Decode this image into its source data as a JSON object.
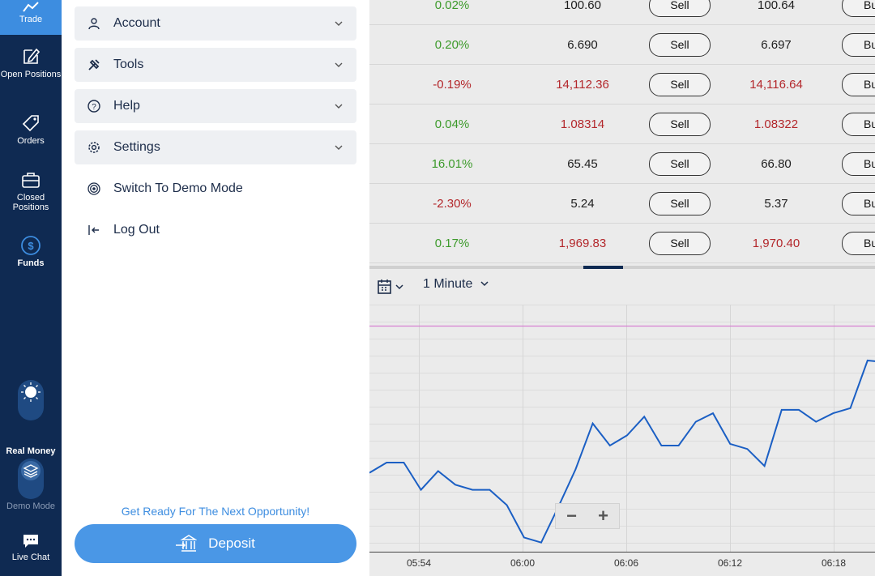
{
  "rail": {
    "items": [
      {
        "label": "Trade",
        "icon": "chart-icon"
      },
      {
        "label": "Open Positions",
        "icon": "edit-icon"
      },
      {
        "label": "Orders",
        "icon": "tag-icon"
      },
      {
        "label": "Closed Positions",
        "icon": "briefcase-icon"
      },
      {
        "label": "Funds",
        "icon": "dollar-icon"
      }
    ],
    "mode_real": "Real Money",
    "mode_demo": "Demo Mode",
    "live_chat": "Live Chat"
  },
  "menu": {
    "items": [
      {
        "label": "Account",
        "icon": "user-icon",
        "expandable": true
      },
      {
        "label": "Tools",
        "icon": "tools-icon",
        "expandable": true
      },
      {
        "label": "Help",
        "icon": "help-icon",
        "expandable": true
      },
      {
        "label": "Settings",
        "icon": "gear-icon",
        "expandable": true
      },
      {
        "label": "Switch To Demo Mode",
        "icon": "target-icon",
        "expandable": false
      },
      {
        "label": "Log Out",
        "icon": "logout-icon",
        "expandable": false
      }
    ],
    "promo": "Get Ready For The Next Opportunity!",
    "deposit_label": "Deposit"
  },
  "quotes": {
    "sell_label": "Sell",
    "buy_label": "Bu",
    "rows": [
      {
        "change": "0.02%",
        "dir": "up",
        "sell": "100.60",
        "buy": "100.64",
        "price_color": "normal"
      },
      {
        "change": "0.20%",
        "dir": "up",
        "sell": "6.690",
        "buy": "6.697",
        "price_color": "normal"
      },
      {
        "change": "-0.19%",
        "dir": "down",
        "sell": "14,112.36",
        "buy": "14,116.64",
        "price_color": "red"
      },
      {
        "change": "0.04%",
        "dir": "up",
        "sell": "1.08314",
        "buy": "1.08322",
        "price_color": "red"
      },
      {
        "change": "16.01%",
        "dir": "up",
        "sell": "65.45",
        "buy": "66.80",
        "price_color": "normal"
      },
      {
        "change": "-2.30%",
        "dir": "down",
        "sell": "5.24",
        "buy": "5.37",
        "price_color": "normal"
      },
      {
        "change": "0.17%",
        "dir": "up",
        "sell": "1,969.83",
        "buy": "1,970.40",
        "price_color": "red"
      }
    ]
  },
  "chart": {
    "interval": "1 Minute",
    "zoom_out": "−",
    "zoom_in": "+"
  },
  "chart_data": {
    "type": "line",
    "x_ticks": [
      "05:54",
      "06:00",
      "06:06",
      "06:12",
      "06:18"
    ],
    "series": [
      {
        "values": [
          2.2,
          2.5,
          2.5,
          1.7,
          2.25,
          1.85,
          1.7,
          1.7,
          1.25,
          0.3,
          0.15,
          1.2,
          2.3,
          3.65,
          3.0,
          3.3,
          3.85,
          3.0,
          3.0,
          3.7,
          3.95,
          3.05,
          2.9,
          2.4,
          4.05,
          4.05,
          3.7,
          3.95,
          4.1,
          5.5,
          5.45
        ]
      }
    ],
    "reference_line_color": "#d77fd1",
    "line_color": "#1b5fc4",
    "grid": true
  }
}
